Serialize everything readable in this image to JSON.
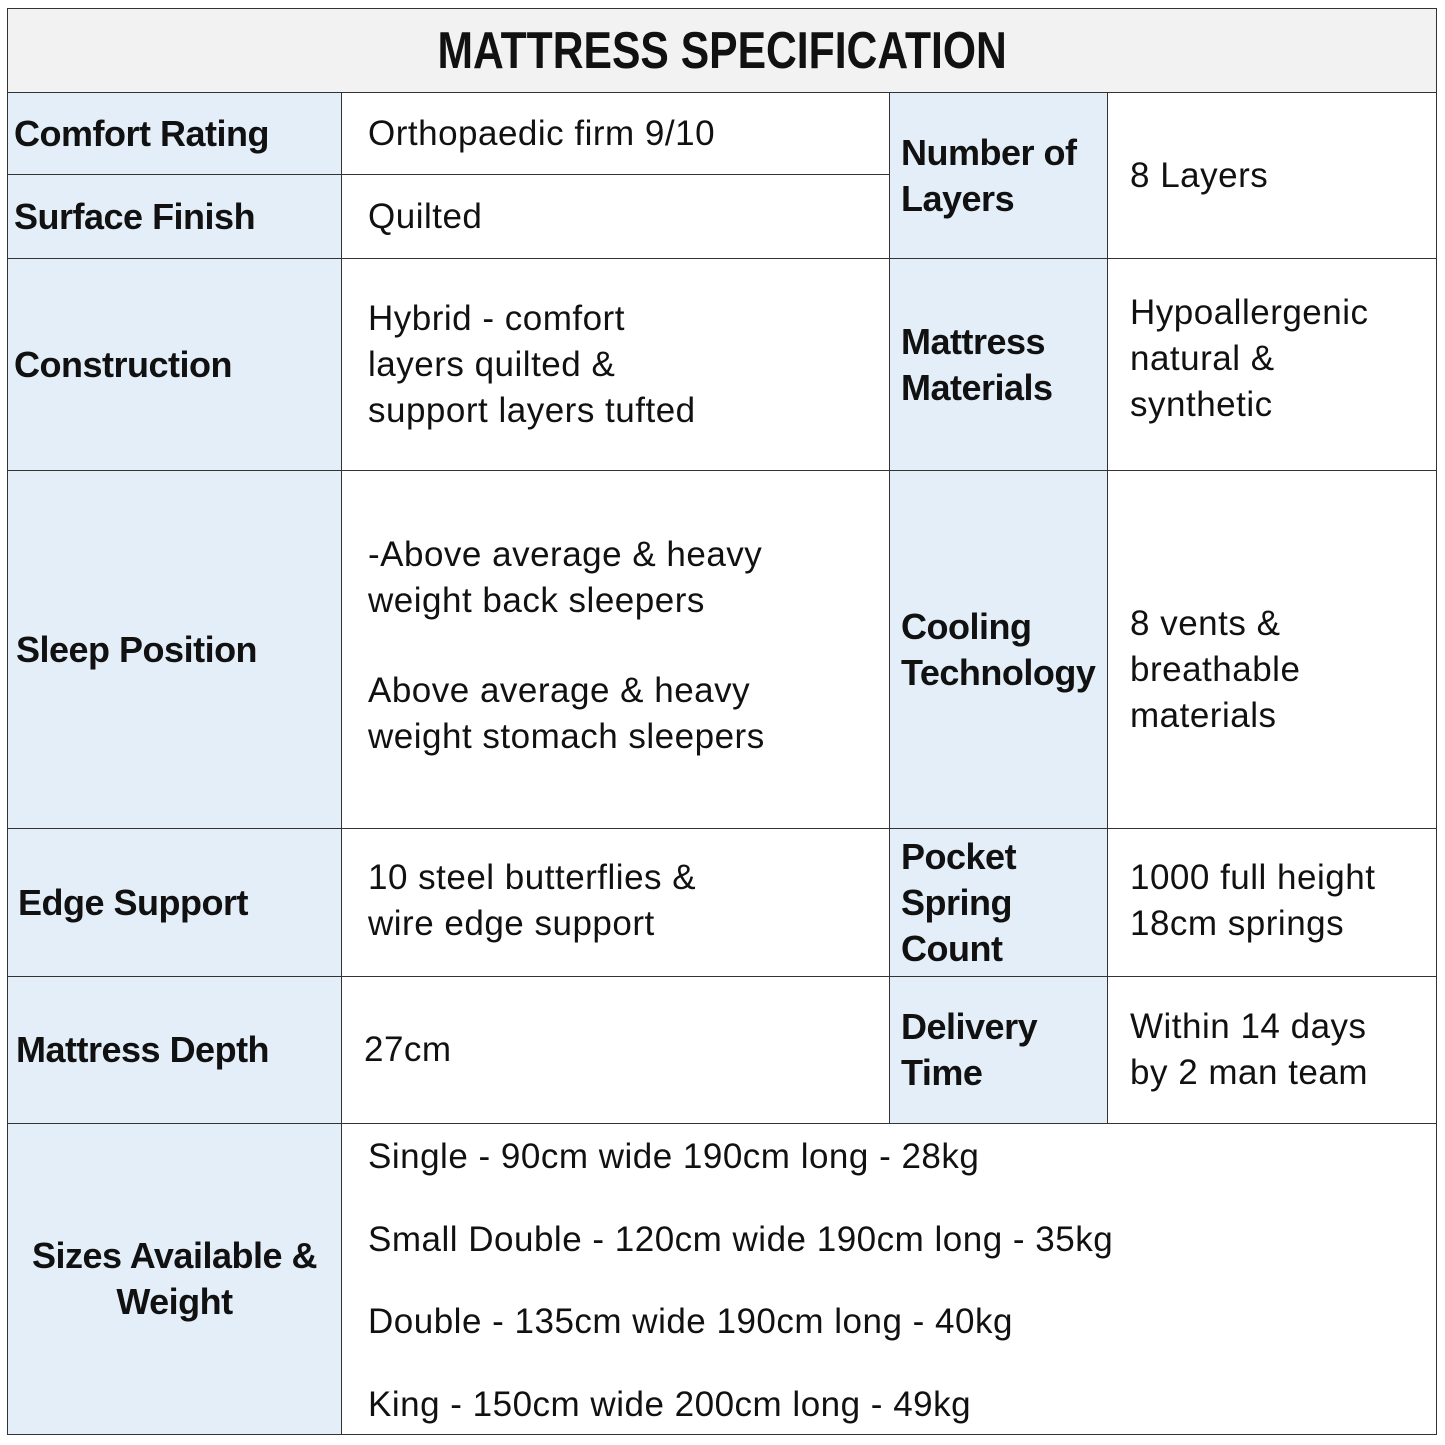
{
  "title": "MATTRESS SPECIFICATION",
  "colors": {
    "label_bg": "#e3eef8",
    "header_bg": "#f2f2f2",
    "border": "#333333"
  },
  "rows": {
    "comfort_rating": {
      "label": "Comfort Rating",
      "value": "Orthopaedic firm 9/10"
    },
    "surface_finish": {
      "label": "Surface Finish",
      "value": "Quilted"
    },
    "number_of_layers": {
      "label": [
        "Number of",
        "Layers"
      ],
      "value": "8 Layers"
    },
    "construction": {
      "label": "Construction",
      "value": [
        "Hybrid - comfort",
        "layers quilted &",
        "support layers tufted"
      ]
    },
    "mattress_materials": {
      "label": [
        "Mattress",
        "Materials"
      ],
      "value": [
        "Hypoallergenic",
        "natural &",
        "synthetic"
      ]
    },
    "sleep_position": {
      "label": "Sleep Position",
      "value": [
        "-Above average & heavy",
        "weight back sleepers",
        "Above average & heavy",
        "weight stomach sleepers"
      ]
    },
    "cooling_technology": {
      "label": [
        "Cooling",
        "Technology"
      ],
      "value": [
        "8 vents &",
        "breathable",
        "materials"
      ]
    },
    "edge_support": {
      "label": "Edge Support",
      "value": [
        "10 steel butterflies &",
        "wire edge support"
      ]
    },
    "pocket_spring_count": {
      "label": [
        "Pocket",
        "Spring",
        "Count"
      ],
      "value": [
        "1000 full height",
        "18cm springs"
      ]
    },
    "mattress_depth": {
      "label": "Mattress Depth",
      "value": "27cm"
    },
    "delivery_time": {
      "label": [
        "Delivery",
        "Time"
      ],
      "value": [
        "Within 14 days",
        "by 2 man team"
      ]
    },
    "sizes": {
      "label": [
        "Sizes Available &",
        "Weight"
      ],
      "value": [
        "Single - 90cm wide 190cm long - 28kg",
        "Small Double - 120cm wide 190cm long - 35kg",
        "Double - 135cm wide 190cm long - 40kg",
        "King - 150cm wide 200cm long - 49kg"
      ]
    }
  }
}
